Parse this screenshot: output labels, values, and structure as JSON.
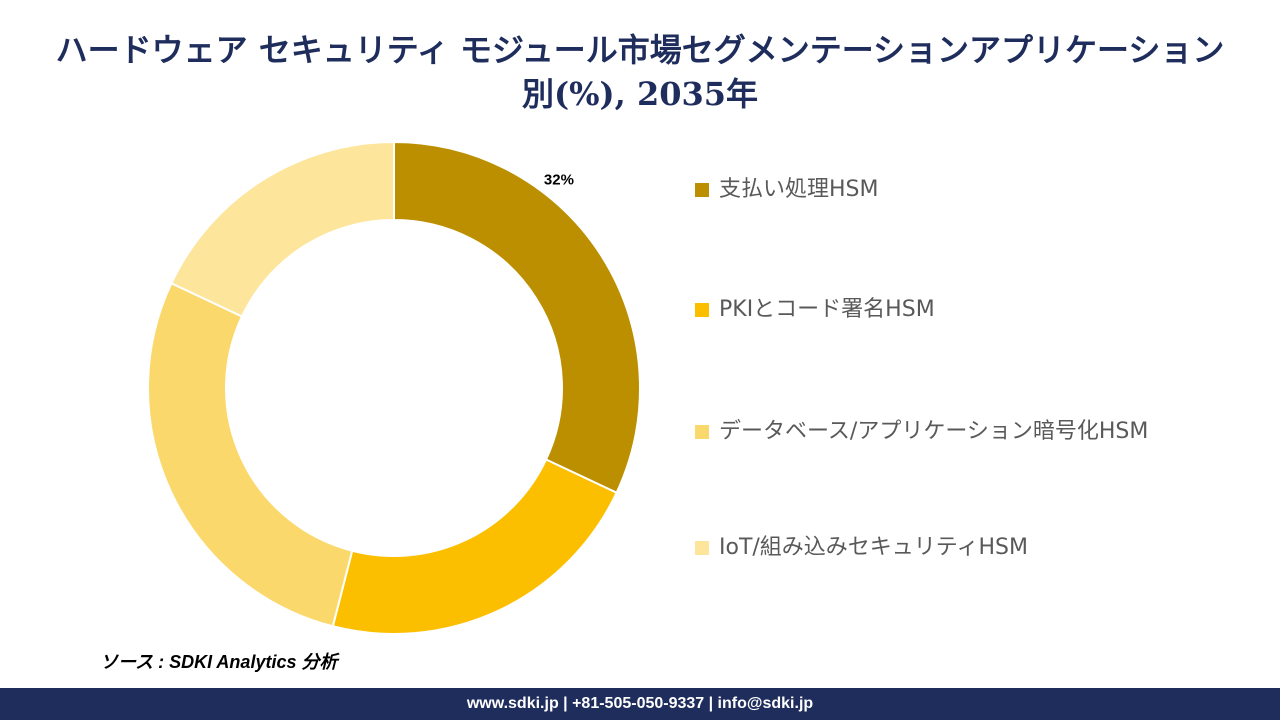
{
  "chart_data": {
    "type": "donut",
    "title": "ハードウェア セキュリティ モジュール市場セグメンテーションアプリケーション別(%), 2035年",
    "categories": [
      "支払い処理HSM",
      "PKIとコード署名HSM",
      "データベース/アプリケーション暗号化HSM",
      "IoT/組み込みセキュリティHSM"
    ],
    "values": [
      32,
      22,
      28,
      18
    ],
    "value_labels": [
      "32%",
      null,
      null,
      null
    ],
    "colors": [
      "#bb8f00",
      "#fbbf00",
      "#fbd86b",
      "#fde59b"
    ]
  },
  "source": "ソース : SDKI Analytics 分析",
  "footer": "www.sdki.jp | +81-505-050-9337 | info@sdki.jp"
}
